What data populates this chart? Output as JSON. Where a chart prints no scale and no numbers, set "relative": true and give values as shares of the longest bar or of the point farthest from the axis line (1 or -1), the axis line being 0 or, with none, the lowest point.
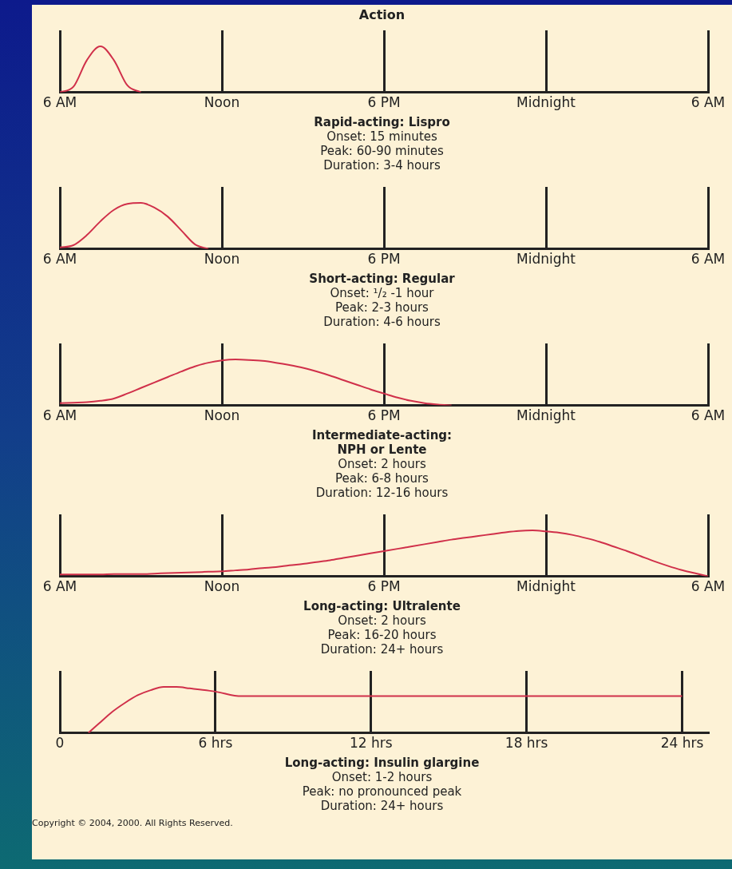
{
  "chart_data": [
    {
      "type": "line",
      "title": "Action",
      "xlabel": "Rapid-acting: Lispro",
      "annotations": [
        "Onset: 15 minutes",
        "Peak: 60-90 minutes",
        "Duration: 3-4 hours"
      ],
      "relative": true,
      "grid": "x",
      "legend": false,
      "color": "#d0304a",
      "categories": [
        "6 AM",
        null,
        null,
        null,
        null,
        null,
        null,
        null,
        null,
        null,
        null,
        null,
        "Noon",
        null,
        null,
        null,
        null,
        null,
        null,
        null,
        null,
        null,
        null,
        null,
        "6 PM",
        null,
        null,
        null,
        null,
        null,
        null,
        null,
        null,
        null,
        null,
        null,
        "Midnight",
        null,
        null,
        null,
        null,
        null,
        null,
        null,
        null,
        null,
        null,
        null,
        "6 AM"
      ],
      "values": [
        0,
        0.12,
        0.7,
        1,
        0.7,
        0.15,
        0,
        null,
        null,
        null,
        null,
        null,
        null,
        null,
        null,
        null,
        null,
        null,
        null,
        null,
        null,
        null,
        null,
        null,
        null,
        null,
        null,
        null,
        null,
        null,
        null,
        null,
        null,
        null,
        null,
        null,
        null,
        null,
        null,
        null,
        null,
        null,
        null,
        null,
        null,
        null,
        null,
        null,
        null
      ]
    },
    {
      "type": "line",
      "xlabel": "Short-acting: Regular",
      "annotations": [
        "Onset: ¹/₂ -1 hour",
        "Peak: 2-3 hours",
        "Duration: 4-6 hours"
      ],
      "relative": true,
      "grid": "x",
      "legend": false,
      "color": "#d0304a",
      "categories": [
        "6 AM",
        null,
        null,
        null,
        null,
        null,
        null,
        null,
        null,
        null,
        null,
        null,
        "Noon",
        null,
        null,
        null,
        null,
        null,
        null,
        null,
        null,
        null,
        null,
        null,
        "6 PM",
        null,
        null,
        null,
        null,
        null,
        null,
        null,
        null,
        null,
        null,
        null,
        "Midnight",
        null,
        null,
        null,
        null,
        null,
        null,
        null,
        null,
        null,
        null,
        null,
        "6 AM"
      ],
      "values": [
        0.03,
        0.08,
        0.3,
        0.6,
        0.85,
        0.98,
        1,
        0.9,
        0.7,
        0.4,
        0.1,
        0,
        null,
        null,
        null,
        null,
        null,
        null,
        null,
        null,
        null,
        null,
        null,
        null,
        null,
        null,
        null,
        null,
        null,
        null,
        null,
        null,
        null,
        null,
        null,
        null,
        null,
        null,
        null,
        null,
        null,
        null,
        null,
        null,
        null,
        null,
        null,
        null,
        null
      ]
    },
    {
      "type": "line",
      "xlabel": "Intermediate-acting:\nNPH or Lente",
      "annotations": [
        "Onset: 2 hours",
        "Peak: 6-8 hours",
        "Duration: 12-16 hours"
      ],
      "relative": true,
      "grid": "x",
      "legend": false,
      "color": "#d0304a",
      "categories": [
        "6 AM",
        null,
        null,
        null,
        null,
        null,
        null,
        null,
        null,
        null,
        null,
        null,
        "Noon",
        null,
        null,
        null,
        null,
        null,
        null,
        null,
        null,
        null,
        null,
        null,
        "6 PM",
        null,
        null,
        null,
        null,
        null,
        null,
        null,
        null,
        null,
        null,
        null,
        "Midnight",
        null,
        null,
        null,
        null,
        null,
        null,
        null,
        null,
        null,
        null,
        null,
        "6 AM"
      ],
      "values": [
        0.05,
        0.06,
        0.07,
        0.1,
        0.15,
        0.26,
        0.38,
        0.5,
        0.62,
        0.74,
        0.85,
        0.93,
        0.98,
        1,
        0.99,
        0.97,
        0.93,
        0.88,
        0.82,
        0.74,
        0.65,
        0.55,
        0.45,
        0.35,
        0.26,
        0.17,
        0.1,
        0.05,
        0.02,
        0,
        null,
        null,
        null,
        null,
        null,
        null,
        null,
        null,
        null,
        null,
        null,
        null,
        null,
        null,
        null,
        null,
        null,
        null,
        null
      ]
    },
    {
      "type": "line",
      "xlabel": "Long-acting: Ultralente",
      "annotations": [
        "Onset: 2 hours",
        "Peak: 16-20 hours",
        "Duration: 24+ hours"
      ],
      "relative": true,
      "grid": "x",
      "legend": false,
      "color": "#d0304a",
      "categories": [
        "6 AM",
        null,
        null,
        null,
        null,
        null,
        null,
        null,
        null,
        null,
        null,
        null,
        "Noon",
        null,
        null,
        null,
        null,
        null,
        null,
        null,
        null,
        null,
        null,
        null,
        "6 PM",
        null,
        null,
        null,
        null,
        null,
        null,
        null,
        null,
        null,
        null,
        null,
        "Midnight",
        null,
        null,
        null,
        null,
        null,
        null,
        null,
        null,
        null,
        null,
        null,
        "6 AM"
      ],
      "values": [
        0.04,
        0.04,
        0.04,
        0.04,
        0.05,
        0.05,
        0.05,
        0.06,
        0.07,
        0.08,
        0.09,
        0.1,
        0.11,
        0.13,
        0.15,
        0.18,
        0.2,
        0.24,
        0.27,
        0.31,
        0.35,
        0.4,
        0.45,
        0.5,
        0.55,
        0.6,
        0.65,
        0.7,
        0.75,
        0.8,
        0.84,
        0.88,
        0.92,
        0.96,
        0.99,
        1,
        0.98,
        0.95,
        0.9,
        0.83,
        0.75,
        0.65,
        0.55,
        0.44,
        0.33,
        0.23,
        0.14,
        0.07,
        0
      ]
    },
    {
      "type": "line",
      "xlabel": "Long-acting: Insulin glargine",
      "annotations": [
        "Onset: 1-2 hours",
        "Peak: no pronounced peak",
        "Duration: 24+ hours",
        "Copyright © 2004, 2000. All Rights Reserved."
      ],
      "relative": true,
      "grid": "x",
      "legend": false,
      "color": "#d0304a",
      "x": [
        1.1,
        1.5,
        2,
        2.5,
        3,
        3.5,
        4,
        4.5,
        5,
        6,
        7,
        12,
        18,
        24
      ],
      "values": [
        0,
        0.2,
        0.45,
        0.65,
        0.82,
        0.93,
        1,
        1,
        0.97,
        0.9,
        0.8,
        0.8,
        0.8,
        0.8
      ],
      "xlim": [
        0,
        25
      ],
      "xticks": [
        0,
        {
          "value": 6,
          "label": "6 hrs"
        },
        {
          "value": 12,
          "label": "12 hrs"
        },
        {
          "value": 18,
          "label": "18 hrs"
        },
        {
          "value": 24,
          "label": "24 hrs"
        }
      ]
    }
  ]
}
